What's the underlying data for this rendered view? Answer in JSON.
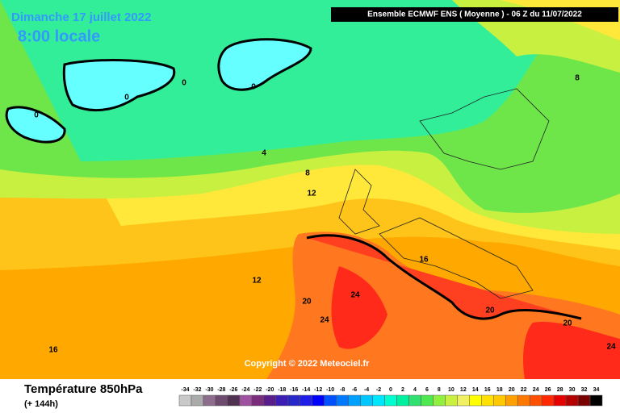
{
  "header": {
    "date": "Dimanche 17 juillet 2022",
    "time": "8:00 locale",
    "model": "Ensemble ECMWF ENS  ( Moyenne )  -  06 Z du 11/07/2022"
  },
  "map": {
    "copyright": "Copyright © 2022 Meteociel.fr",
    "contour_labels": [
      0,
      0,
      0,
      0,
      4,
      8,
      12,
      16,
      12,
      20,
      24,
      24,
      20,
      20,
      24,
      16,
      8
    ]
  },
  "footer": {
    "title": "Température 850hPa",
    "lead": "(+ 144h)"
  },
  "legend": {
    "labels": [
      -34,
      -32,
      -30,
      -28,
      -26,
      -24,
      -22,
      -20,
      -18,
      -16,
      -14,
      -12,
      -10,
      -8,
      -6,
      -4,
      -2,
      0,
      2,
      4,
      6,
      8,
      10,
      12,
      14,
      16,
      18,
      20,
      22,
      24,
      26,
      28,
      30,
      32,
      34
    ],
    "colors": [
      "#c8c8c8",
      "#aaaaaa",
      "#8c6e8c",
      "#6e4b6e",
      "#503250",
      "#a050a0",
      "#7a2d7a",
      "#5a1e8c",
      "#3c1eb4",
      "#2828c8",
      "#1e1ee6",
      "#0000ff",
      "#0050ff",
      "#0078ff",
      "#00a0ff",
      "#00c8ff",
      "#00e6ff",
      "#00ffd0",
      "#00f0a0",
      "#30e070",
      "#50e850",
      "#90f040",
      "#c8f040",
      "#f0f060",
      "#ffff00",
      "#ffe000",
      "#ffc800",
      "#ffa000",
      "#ff7800",
      "#ff5000",
      "#ff2800",
      "#e60000",
      "#b40000",
      "#780000",
      "#000000"
    ]
  }
}
